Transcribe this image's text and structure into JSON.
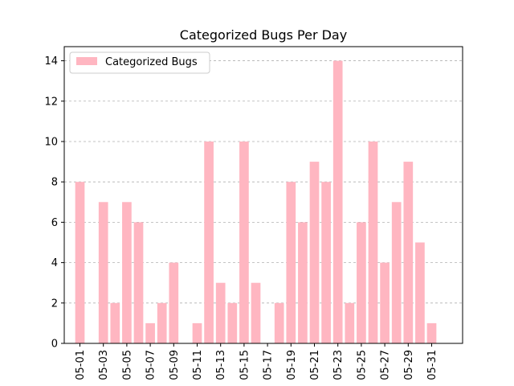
{
  "chart_data": {
    "type": "bar",
    "title": "Categorized Bugs Per Day",
    "xlabel": "",
    "ylabel": "",
    "categories": [
      "05-01",
      "05-02",
      "05-03",
      "05-04",
      "05-05",
      "05-06",
      "05-07",
      "05-08",
      "05-09",
      "05-10",
      "05-11",
      "05-12",
      "05-13",
      "05-14",
      "05-15",
      "05-16",
      "05-17",
      "05-18",
      "05-19",
      "05-20",
      "05-21",
      "05-22",
      "05-23",
      "05-24",
      "05-25",
      "05-26",
      "05-27",
      "05-28",
      "05-29",
      "05-30",
      "05-31"
    ],
    "x_tick_labels": [
      "05-01",
      "05-03",
      "05-05",
      "05-07",
      "05-09",
      "05-11",
      "05-13",
      "05-15",
      "05-17",
      "05-19",
      "05-21",
      "05-23",
      "05-25",
      "05-27",
      "05-29",
      "05-31"
    ],
    "series": [
      {
        "name": "Categorized Bugs",
        "color": "#ffb6c1",
        "values": [
          8,
          0,
          7,
          2,
          7,
          6,
          1,
          2,
          4,
          0,
          1,
          10,
          3,
          2,
          10,
          3,
          0,
          2,
          8,
          6,
          9,
          8,
          14,
          2,
          6,
          10,
          4,
          7,
          9,
          5,
          1
        ]
      }
    ],
    "ylim": [
      0,
      14.7
    ],
    "y_ticks": [
      0,
      2,
      4,
      6,
      8,
      10,
      12,
      14
    ],
    "grid": "y-dashed",
    "legend_position": "top-left"
  }
}
